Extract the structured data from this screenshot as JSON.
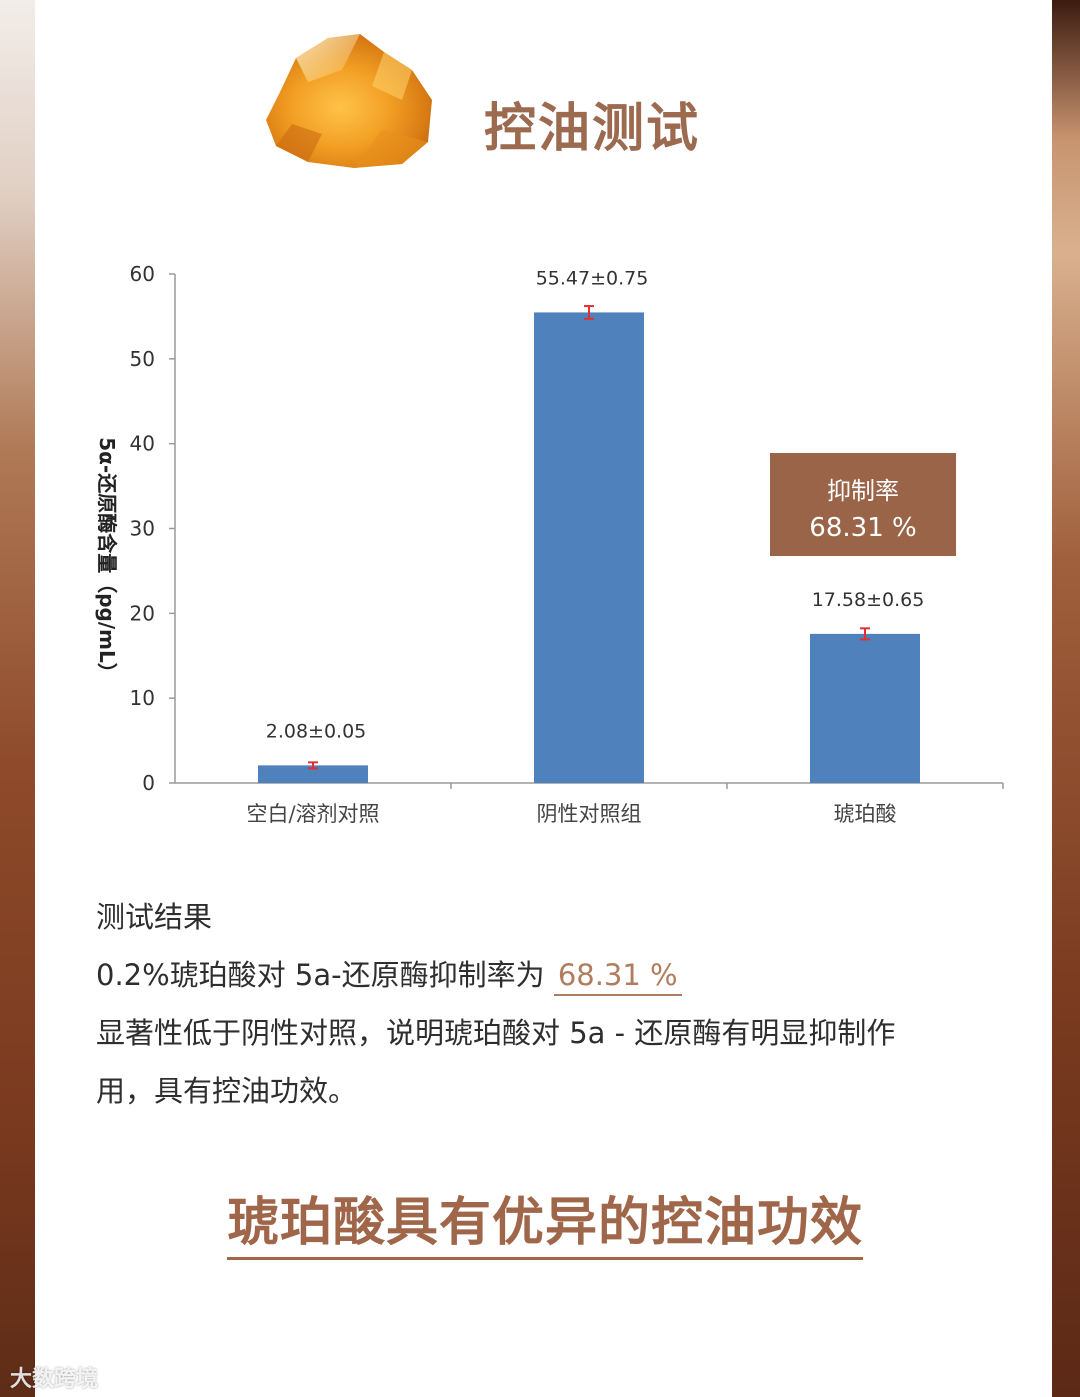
{
  "header": {
    "title": "控油测试"
  },
  "chart_data": {
    "type": "bar",
    "title": "",
    "xlabel": "",
    "ylabel": "5α-还原酶含量（pg/mL）",
    "ylim": [
      0,
      60
    ],
    "yticks": [
      "0",
      "10",
      "20",
      "30",
      "40",
      "50",
      "60"
    ],
    "categories": [
      "空白/溶剂对照",
      "阴性对照组",
      "琥珀酸"
    ],
    "values": [
      2.08,
      55.47,
      17.58
    ],
    "errors": [
      0.05,
      0.75,
      0.65
    ],
    "data_labels": [
      "2.08±0.05",
      "55.47±0.75",
      "17.58±0.65"
    ],
    "grid": false,
    "bar_color": "#4f81bd",
    "error_color": "#e03030"
  },
  "inhibition": {
    "label": "抑制率",
    "value": "68.31 %"
  },
  "results": {
    "heading": "测试结果",
    "line1_prefix": "0.2%琥珀酸对 5a-还原酶抑制率为",
    "line1_value": "68.31 %",
    "line2": "显著性低于阴性对照，说明琥珀酸对 5a - 还原酶有明显抑制作",
    "line3": "用，具有控油功效。"
  },
  "conclusion": "琥珀酸具有优异的控油功效",
  "watermark": "大数跨境",
  "colors": {
    "accent": "#9b6a4f",
    "box": "#9a6448",
    "highlight": "#b07d5f"
  }
}
